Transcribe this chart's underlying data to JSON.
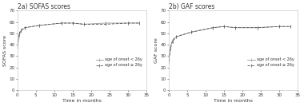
{
  "title_left": "2a) SOFAS scores",
  "title_right": "2b) GAF scores",
  "ylabel_left": "SOFAS score",
  "ylabel_right": "GAF score",
  "xlabel": "Time in months",
  "x_ticks": [
    0,
    5,
    10,
    15,
    20,
    25,
    30,
    35
  ],
  "ylim_sofas": [
    0,
    70
  ],
  "ylim_gaf": [
    0,
    70
  ],
  "xlim": [
    0,
    35
  ],
  "yticks": [
    0,
    10,
    20,
    30,
    40,
    50,
    60,
    70
  ],
  "legend_line1": "age of onset < 26y",
  "legend_line2": "age of onset ≥ 26y",
  "sofas_x": [
    0,
    0.5,
    1,
    2,
    6,
    12,
    15,
    18,
    24,
    30,
    33
  ],
  "sofas_young": [
    38,
    48,
    52,
    55,
    57,
    59,
    59,
    58,
    59,
    59,
    59
  ],
  "sofas_old": [
    43,
    50,
    53,
    55,
    57,
    59,
    59,
    58,
    58,
    59,
    59
  ],
  "gaf_x": [
    0,
    0.5,
    1,
    2,
    6,
    12,
    15,
    18,
    24,
    30,
    33
  ],
  "gaf_young": [
    25,
    39,
    44,
    47,
    51,
    55,
    56,
    55,
    55,
    56,
    56
  ],
  "gaf_old": [
    27,
    37,
    43,
    47,
    51,
    55,
    56,
    55,
    55,
    56,
    56
  ],
  "color_young": "#999999",
  "color_old": "#555555",
  "bg_color": "#ffffff",
  "title_fontsize": 5.5,
  "axis_label_fontsize": 4.5,
  "tick_fontsize": 4.0,
  "legend_fontsize": 3.5,
  "linewidth": 0.6,
  "spine_color": "#bbbbbb"
}
